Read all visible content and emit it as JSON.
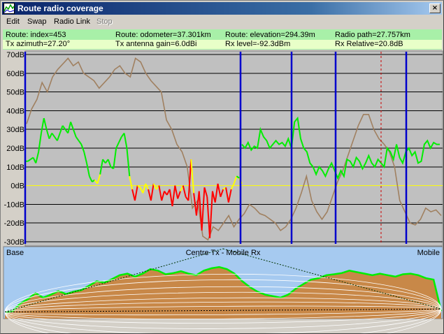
{
  "window": {
    "title": "Route radio coverage",
    "close_glyph": "×",
    "icon": "route-chart-icon",
    "title_gradient": [
      "#0a246a",
      "#a6caf0"
    ]
  },
  "menu": [
    {
      "label": "Edit",
      "enabled": true
    },
    {
      "label": "Swap",
      "enabled": true
    },
    {
      "label": "Radio Link",
      "enabled": true
    },
    {
      "label": "Stop",
      "enabled": false
    }
  ],
  "info": {
    "row1": [
      "Route: index=453",
      "Route: odometer=37.301km",
      "Route: elevation=294.39m",
      "Radio path=27.757km"
    ],
    "row2": [
      "Tx azimuth=27.20°",
      "Tx antenna gain=6.0dBi",
      "Rx level=-92.3dBm",
      "Rx Relative=20.8dB"
    ],
    "colors": {
      "cell": "#a8f0a8",
      "highlight": "#e8ffc8"
    }
  },
  "chart_data": {
    "type": "line",
    "ylim": [
      -30,
      70
    ],
    "yticks": [
      "70dB",
      "60dB",
      "50dB",
      "40dB",
      "30dB",
      "20dB",
      "10dB",
      "0dB",
      "-10dB",
      "-20dB",
      "-30dB"
    ],
    "zero_line_color": "#ffff00",
    "series": [
      {
        "name": "",
        "role": "rx-relative-level",
        "color_above": "#00ee00",
        "color_marginal": "#ffff00",
        "color_below": "#ff0000",
        "values": [
          13,
          13,
          14,
          15,
          12,
          18,
          28,
          36,
          30,
          25,
          28,
          26,
          24,
          28,
          32,
          30,
          28,
          34,
          30,
          26,
          24,
          22,
          18,
          12,
          5,
          2,
          3,
          1,
          6,
          14,
          12,
          14,
          10,
          9,
          20,
          23,
          26,
          28,
          20,
          5,
          -2,
          -8,
          0,
          -1,
          -4,
          1,
          -2,
          -8,
          1,
          -2,
          0,
          -8,
          -3,
          -5,
          -2,
          -11,
          0,
          -7,
          -3,
          0,
          -6,
          -8,
          14,
          -4,
          -16,
          -3,
          -24,
          -1,
          -6,
          -28,
          -3,
          -9,
          1,
          -6,
          -2,
          -1,
          -9,
          -2,
          1,
          5,
          4,
          1
        ]
      },
      {
        "name": "",
        "role": "rx-relative-level-2",
        "color_above": "#00ee00",
        "values": [
          22,
          20,
          23,
          19,
          21,
          20,
          30,
          26,
          24,
          20,
          22,
          24,
          22,
          23,
          21,
          25,
          20,
          34,
          36,
          25,
          20,
          18,
          12,
          10,
          6,
          10,
          8,
          5,
          9,
          12,
          8,
          4,
          8,
          5,
          14,
          13,
          10,
          15,
          13,
          9,
          12,
          16,
          12,
          10,
          14,
          12,
          10,
          20,
          18,
          14,
          22,
          15,
          12,
          18,
          20,
          16,
          18,
          12,
          13,
          22,
          24,
          20,
          23,
          22,
          22
        ]
      },
      {
        "name": "",
        "role": "terrain-elevation",
        "color": "#a08060",
        "values": [
          33,
          41,
          46,
          55,
          50,
          58,
          62,
          65,
          68,
          64,
          66,
          60,
          58,
          56,
          52,
          55,
          58,
          62,
          64,
          60,
          58,
          68,
          66,
          60,
          56,
          53,
          50,
          35,
          30,
          22,
          18,
          10,
          -12,
          -8,
          -27,
          -29,
          -22,
          -24,
          -20,
          -16,
          -22,
          -18,
          -15,
          -10,
          -12,
          -15,
          -16,
          -18,
          -20,
          -24,
          -22,
          -18,
          -12,
          -4,
          5,
          -8,
          -14,
          -18,
          -14,
          -6,
          2,
          8,
          16,
          24,
          32,
          38,
          38,
          30,
          25,
          22,
          18,
          10,
          -8,
          -14,
          -20,
          -21,
          -18,
          -12,
          -14,
          -13,
          -16
        ]
      }
    ],
    "vlines": {
      "solid_color": "#0000cc",
      "dashed_color": "#cc0000"
    }
  },
  "profile": {
    "labels": {
      "left": "Base",
      "center": "Centre Tx - Mobile Rx",
      "right": "Mobile"
    },
    "colors": {
      "sky": "#a6caf0",
      "terrain": "#c88848",
      "terrain_line": "#00ee00",
      "fresnel": "#ffffff",
      "los": "#000000"
    },
    "terrain_elevation": [
      300,
      305,
      330,
      345,
      365,
      350,
      360,
      372,
      362,
      370,
      375,
      390,
      405,
      400,
      412,
      425,
      430,
      420,
      430,
      445,
      440,
      428,
      432,
      438,
      430,
      425,
      440,
      448,
      452,
      445,
      430,
      405,
      385,
      370,
      360,
      355,
      350,
      360,
      380,
      395,
      410,
      415,
      425,
      428,
      432,
      440,
      435,
      430,
      425,
      430,
      425,
      420,
      428,
      430,
      425,
      415,
      410,
      305
    ]
  }
}
